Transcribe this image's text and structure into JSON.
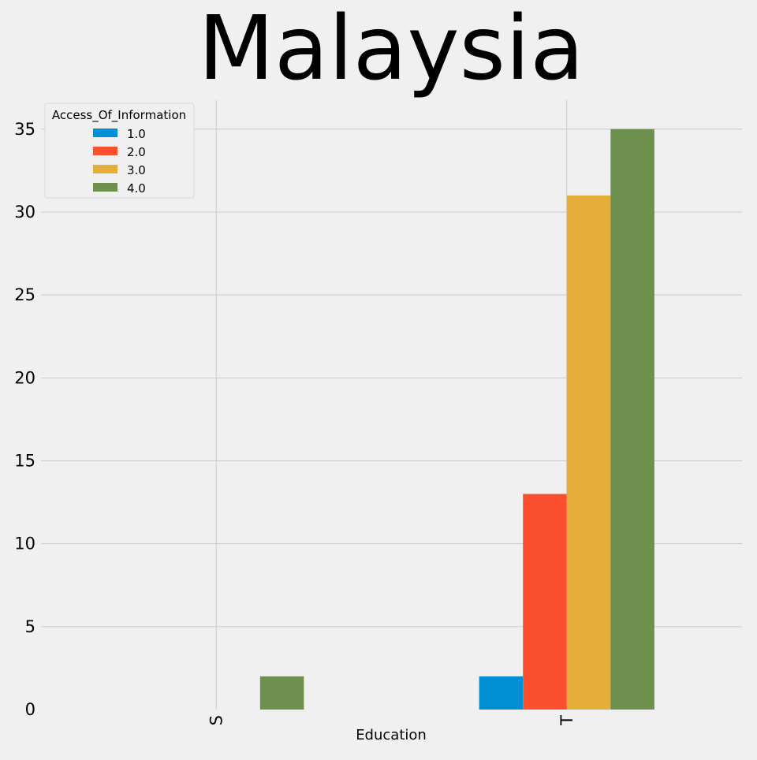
{
  "chart_data": {
    "type": "bar",
    "title": "Malaysia",
    "xlabel": "Education",
    "ylabel": "",
    "categories": [
      "S",
      "T"
    ],
    "series": [
      {
        "name": "1.0",
        "values": [
          0,
          2
        ],
        "color": "#008fd5"
      },
      {
        "name": "2.0",
        "values": [
          0,
          13
        ],
        "color": "#fc4f30"
      },
      {
        "name": "3.0",
        "values": [
          0,
          31
        ],
        "color": "#e5ae38"
      },
      {
        "name": "4.0",
        "values": [
          2,
          35
        ],
        "color": "#6d904f"
      }
    ],
    "ylim": [
      0,
      36.75
    ],
    "yticks": [
      0,
      5,
      10,
      15,
      20,
      25,
      30,
      35
    ],
    "grid": true,
    "legend": {
      "title": "Access_Of_Information",
      "position": "top-left"
    },
    "style": {
      "background": "#f0f0f0",
      "grid_color": "#cbcbcb"
    }
  }
}
